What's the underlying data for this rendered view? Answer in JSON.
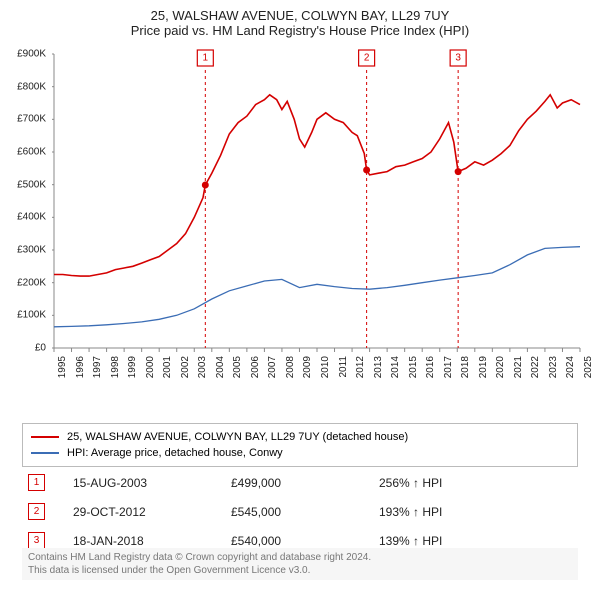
{
  "title_line1": "25, WALSHAW AVENUE, COLWYN BAY, LL29 7UY",
  "title_line2": "Price paid vs. HM Land Registry's House Price Index (HPI)",
  "chart": {
    "type": "line",
    "background_color": "#ffffff",
    "x_axis": {
      "min_year": 1995,
      "max_year": 2025,
      "tick_years": [
        1995,
        1996,
        1997,
        1998,
        1999,
        2000,
        2001,
        2002,
        2003,
        2004,
        2005,
        2006,
        2007,
        2008,
        2009,
        2010,
        2011,
        2012,
        2013,
        2014,
        2015,
        2016,
        2017,
        2018,
        2019,
        2020,
        2021,
        2022,
        2023,
        2024,
        2025
      ],
      "label_fontsize": 10,
      "label_color": "#222222"
    },
    "y_axis": {
      "min": 0,
      "max": 900000,
      "tick_step": 100000,
      "labels": [
        "£0",
        "£100K",
        "£200K",
        "£300K",
        "£400K",
        "£500K",
        "£600K",
        "£700K",
        "£800K",
        "£900K"
      ],
      "label_fontsize": 10,
      "label_color": "#222222"
    },
    "axis_color": "#888888",
    "series": [
      {
        "name": "property",
        "label": "25, WALSHAW AVENUE, COLWYN BAY, LL29 7UY (detached house)",
        "color": "#d40000",
        "line_width": 1.6,
        "points": [
          [
            1995.0,
            225000
          ],
          [
            1995.5,
            225000
          ],
          [
            1996.0,
            222000
          ],
          [
            1996.5,
            220000
          ],
          [
            1997.0,
            220000
          ],
          [
            1997.5,
            225000
          ],
          [
            1998.0,
            230000
          ],
          [
            1998.5,
            240000
          ],
          [
            1999.0,
            245000
          ],
          [
            1999.5,
            250000
          ],
          [
            2000.0,
            260000
          ],
          [
            2000.5,
            270000
          ],
          [
            2001.0,
            280000
          ],
          [
            2001.5,
            300000
          ],
          [
            2002.0,
            320000
          ],
          [
            2002.5,
            350000
          ],
          [
            2003.0,
            400000
          ],
          [
            2003.5,
            460000
          ],
          [
            2003.63,
            499000
          ],
          [
            2004.0,
            535000
          ],
          [
            2004.5,
            590000
          ],
          [
            2005.0,
            655000
          ],
          [
            2005.5,
            690000
          ],
          [
            2006.0,
            710000
          ],
          [
            2006.5,
            745000
          ],
          [
            2007.0,
            760000
          ],
          [
            2007.3,
            775000
          ],
          [
            2007.7,
            760000
          ],
          [
            2008.0,
            730000
          ],
          [
            2008.3,
            755000
          ],
          [
            2008.7,
            700000
          ],
          [
            2009.0,
            640000
          ],
          [
            2009.3,
            615000
          ],
          [
            2009.7,
            660000
          ],
          [
            2010.0,
            700000
          ],
          [
            2010.5,
            720000
          ],
          [
            2011.0,
            700000
          ],
          [
            2011.5,
            690000
          ],
          [
            2012.0,
            660000
          ],
          [
            2012.3,
            650000
          ],
          [
            2012.7,
            595000
          ],
          [
            2012.83,
            545000
          ],
          [
            2013.0,
            530000
          ],
          [
            2013.5,
            535000
          ],
          [
            2014.0,
            540000
          ],
          [
            2014.5,
            555000
          ],
          [
            2015.0,
            560000
          ],
          [
            2015.5,
            570000
          ],
          [
            2016.0,
            580000
          ],
          [
            2016.5,
            600000
          ],
          [
            2017.0,
            640000
          ],
          [
            2017.5,
            690000
          ],
          [
            2017.8,
            630000
          ],
          [
            2018.05,
            540000
          ],
          [
            2018.5,
            550000
          ],
          [
            2019.0,
            570000
          ],
          [
            2019.5,
            560000
          ],
          [
            2020.0,
            575000
          ],
          [
            2020.5,
            595000
          ],
          [
            2021.0,
            620000
          ],
          [
            2021.5,
            665000
          ],
          [
            2022.0,
            700000
          ],
          [
            2022.5,
            725000
          ],
          [
            2023.0,
            755000
          ],
          [
            2023.3,
            775000
          ],
          [
            2023.7,
            735000
          ],
          [
            2024.0,
            750000
          ],
          [
            2024.5,
            760000
          ],
          [
            2025.0,
            745000
          ]
        ]
      },
      {
        "name": "hpi",
        "label": "HPI: Average price, detached house, Conwy",
        "color": "#3b6db5",
        "line_width": 1.3,
        "points": [
          [
            1995.0,
            65000
          ],
          [
            1996.0,
            66000
          ],
          [
            1997.0,
            68000
          ],
          [
            1998.0,
            71000
          ],
          [
            1999.0,
            75000
          ],
          [
            2000.0,
            80000
          ],
          [
            2001.0,
            88000
          ],
          [
            2002.0,
            100000
          ],
          [
            2003.0,
            120000
          ],
          [
            2004.0,
            150000
          ],
          [
            2005.0,
            175000
          ],
          [
            2006.0,
            190000
          ],
          [
            2007.0,
            205000
          ],
          [
            2008.0,
            210000
          ],
          [
            2009.0,
            185000
          ],
          [
            2010.0,
            195000
          ],
          [
            2011.0,
            188000
          ],
          [
            2012.0,
            182000
          ],
          [
            2013.0,
            180000
          ],
          [
            2014.0,
            185000
          ],
          [
            2015.0,
            192000
          ],
          [
            2016.0,
            200000
          ],
          [
            2017.0,
            208000
          ],
          [
            2018.0,
            215000
          ],
          [
            2019.0,
            222000
          ],
          [
            2020.0,
            230000
          ],
          [
            2021.0,
            255000
          ],
          [
            2022.0,
            285000
          ],
          [
            2023.0,
            305000
          ],
          [
            2024.0,
            308000
          ],
          [
            2025.0,
            310000
          ]
        ]
      }
    ],
    "sale_markers": [
      {
        "n": "1",
        "year": 2003.63,
        "price": 499000,
        "color": "#d40000"
      },
      {
        "n": "2",
        "year": 2012.83,
        "price": 545000,
        "color": "#d40000"
      },
      {
        "n": "3",
        "year": 2018.05,
        "price": 540000,
        "color": "#d40000"
      }
    ]
  },
  "legend": {
    "border_color": "#bbbbbb",
    "fontsize": 11
  },
  "sales_table": {
    "marker_border_color": "#d40000",
    "marker_text_color": "#d40000",
    "rows": [
      {
        "n": "1",
        "date": "15-AUG-2003",
        "price": "£499,000",
        "hpi": "256% ↑ HPI"
      },
      {
        "n": "2",
        "date": "29-OCT-2012",
        "price": "£545,000",
        "hpi": "193% ↑ HPI"
      },
      {
        "n": "3",
        "date": "18-JAN-2018",
        "price": "£540,000",
        "hpi": "139% ↑ HPI"
      }
    ]
  },
  "footer": {
    "line1": "Contains HM Land Registry data © Crown copyright and database right 2024.",
    "line2": "This data is licensed under the Open Government Licence v3.0.",
    "color": "#777777",
    "background": "#f6f6f6"
  }
}
